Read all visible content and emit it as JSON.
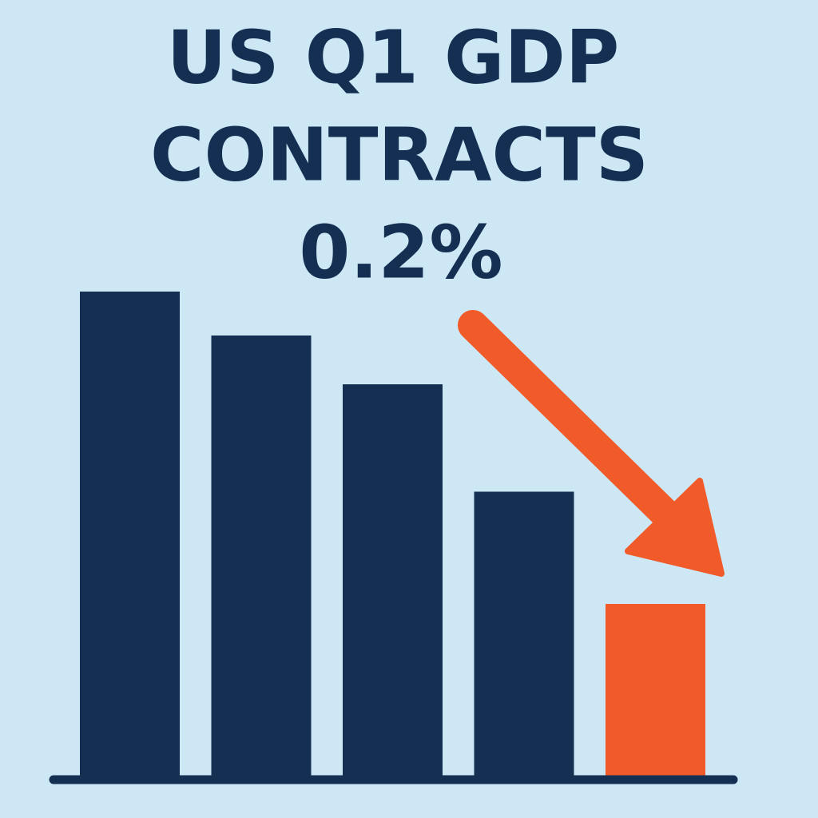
{
  "chart_data": {
    "type": "bar",
    "title": [
      "US Q1 GDP",
      "CONTRACTS",
      "0.2%"
    ],
    "categories": [
      null,
      null,
      null,
      null,
      null
    ],
    "values": [
      100,
      91,
      81,
      59,
      36
    ],
    "colors": [
      "#142f52",
      "#142f52",
      "#142f52",
      "#142f52",
      "#f15a29"
    ],
    "ylim": [
      0,
      100
    ]
  }
}
